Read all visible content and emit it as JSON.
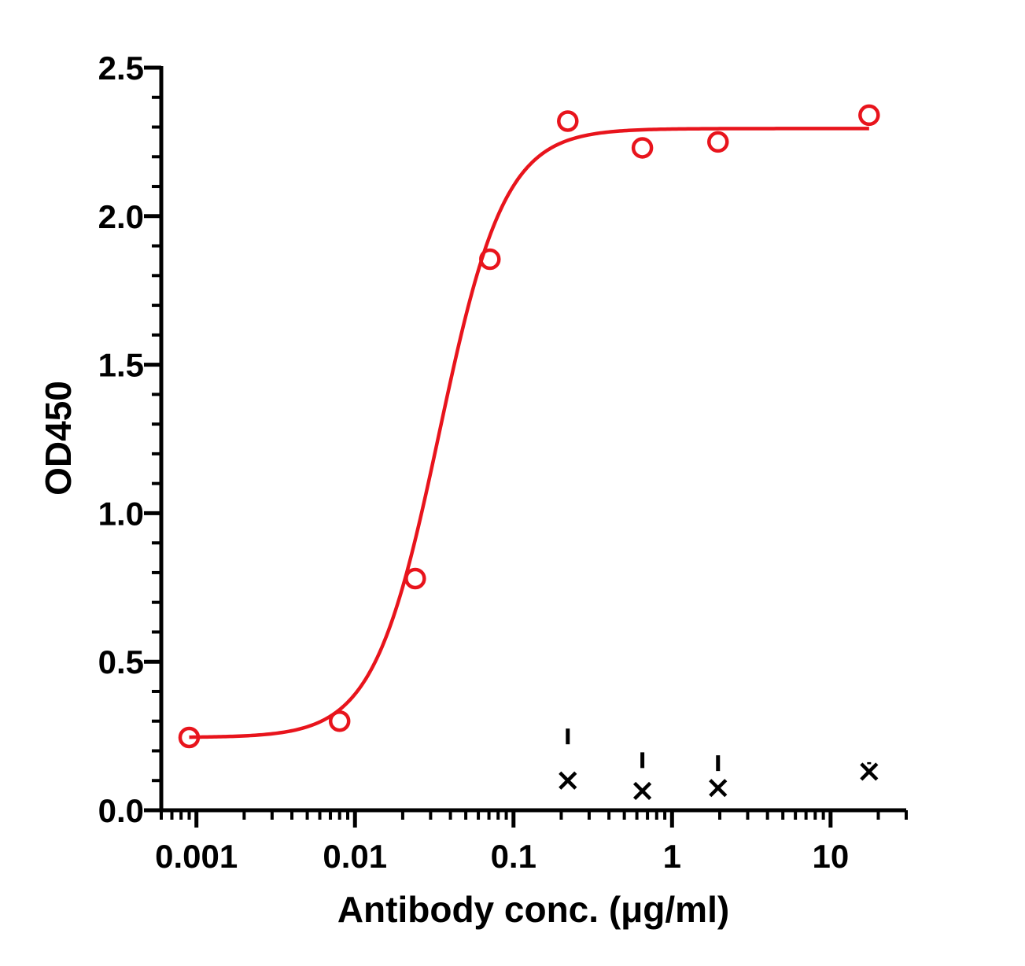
{
  "chart_data": {
    "type": "scatter",
    "xlabel": "Antibody conc. (μg/ml)",
    "ylabel": "OD450",
    "x_scale": "log",
    "xlim": [
      0.0006,
      30
    ],
    "ylim": [
      0,
      2.5
    ],
    "x_ticks": [
      {
        "value": 0.001,
        "label": "0.001"
      },
      {
        "value": 0.01,
        "label": "0.01"
      },
      {
        "value": 0.1,
        "label": "0.1"
      },
      {
        "value": 1,
        "label": "1"
      },
      {
        "value": 10,
        "label": "10"
      }
    ],
    "y_ticks": [
      {
        "value": 0,
        "label": "0.0"
      },
      {
        "value": 0.5,
        "label": "0.5"
      },
      {
        "value": 1.0,
        "label": "1.0"
      },
      {
        "value": 1.5,
        "label": "1.5"
      },
      {
        "value": 2.0,
        "label": "2.0"
      },
      {
        "value": 2.5,
        "label": "2.5"
      }
    ],
    "grid": false,
    "legend": "none",
    "series": [
      {
        "marker": "open-circle",
        "color": "#e8141c",
        "x": [
          0.0009,
          0.008,
          0.024,
          0.071,
          0.22,
          0.65,
          1.95,
          17.5
        ],
        "y": [
          0.245,
          0.3,
          0.78,
          1.855,
          2.32,
          2.23,
          2.25,
          2.34
        ],
        "fit": {
          "type": "4PL",
          "bottom": 0.245,
          "top": 2.295,
          "ec50": 0.034,
          "hill": 2.1,
          "x_range": [
            0.0009,
            17.5
          ]
        }
      },
      {
        "marker": "x",
        "color": "#000000",
        "x": [
          0.22,
          0.65,
          1.95,
          17.5
        ],
        "y": [
          0.1,
          0.065,
          0.075,
          0.13
        ],
        "error_top": [
          0.275,
          0.195,
          0.185,
          0.155
        ]
      }
    ]
  }
}
